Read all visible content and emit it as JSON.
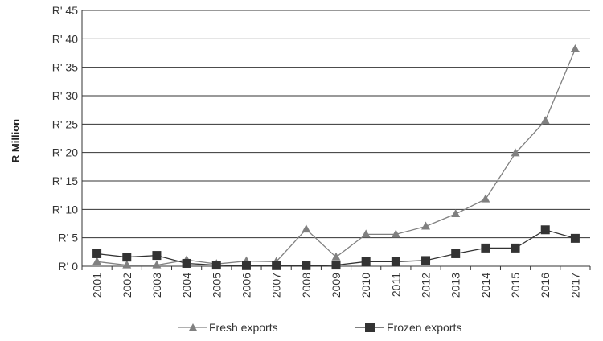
{
  "chart_data": {
    "type": "line",
    "title": "",
    "xlabel": "",
    "ylabel": "R Million",
    "ylim": [
      0,
      45
    ],
    "y_tick_values": [
      0,
      5,
      10,
      15,
      20,
      25,
      30,
      35,
      40,
      45
    ],
    "y_tick_labels": [
      "R' 0",
      "R' 5",
      "R' 10",
      "R' 15",
      "R' 20",
      "R' 25",
      "R' 30",
      "R' 35",
      "R' 40",
      "R' 45"
    ],
    "categories": [
      "2001",
      "2002",
      "2003",
      "2004",
      "2005",
      "2006",
      "2007",
      "2008",
      "2009",
      "2010",
      "2011",
      "2012",
      "2013",
      "2014",
      "2015",
      "2016",
      "2017"
    ],
    "grid": "horizontal",
    "legend_position": "bottom",
    "series": [
      {
        "name": "Fresh exports",
        "marker": "triangle",
        "color": "#808080",
        "values": [
          0.8,
          0.2,
          0.2,
          1.1,
          0.4,
          0.9,
          0.8,
          6.5,
          1.6,
          5.6,
          5.6,
          7.0,
          9.2,
          11.8,
          19.9,
          25.6,
          38.2
        ]
      },
      {
        "name": "Frozen exports",
        "marker": "square",
        "color": "#333333",
        "values": [
          2.2,
          1.6,
          1.9,
          0.5,
          0.2,
          0.1,
          0.1,
          0.1,
          0.2,
          0.8,
          0.8,
          1.0,
          2.2,
          3.2,
          3.2,
          6.4,
          4.9
        ]
      }
    ]
  }
}
